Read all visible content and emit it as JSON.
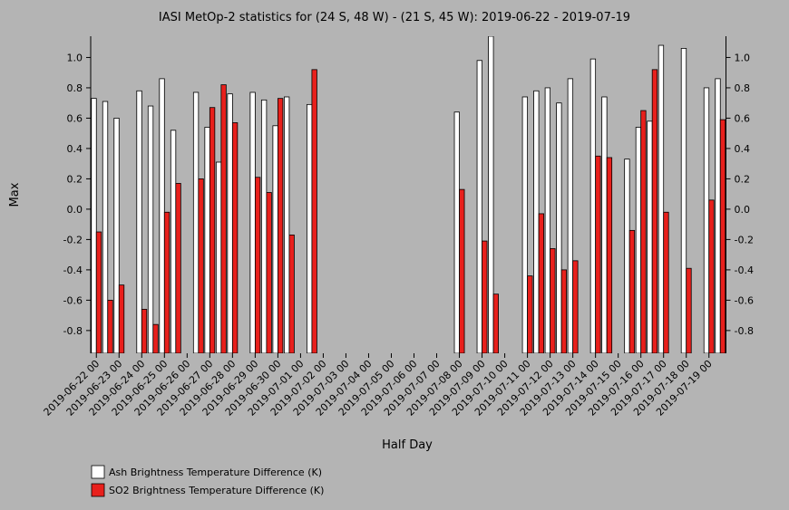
{
  "chart_data": {
    "type": "bar",
    "title": "IASI MetOp-2 statistics for (24 S, 48 W) - (21 S, 45 W): 2019-06-22 - 2019-07-19",
    "xlabel": "Half Day",
    "ylabel": "Max",
    "categories": [
      "2019-06-22 00",
      null,
      "2019-06-23 00",
      null,
      "2019-06-24 00",
      null,
      "2019-06-25 00",
      null,
      "2019-06-26 00",
      null,
      "2019-06-27 00",
      null,
      "2019-06-28 00",
      null,
      "2019-06-29 00",
      null,
      "2019-06-30 00",
      null,
      "2019-07-01 00",
      null,
      "2019-07-02 00",
      null,
      "2019-07-03 00",
      null,
      "2019-07-04 00",
      null,
      "2019-07-05 00",
      null,
      "2019-07-06 00",
      null,
      "2019-07-07 00",
      null,
      "2019-07-08 00",
      null,
      "2019-07-09 00",
      null,
      "2019-07-10 00",
      null,
      "2019-07-11 00",
      null,
      "2019-07-12 00",
      null,
      "2019-07-13 00",
      null,
      "2019-07-14 00",
      null,
      "2019-07-15 00",
      null,
      "2019-07-16 00",
      null,
      "2019-07-17 00",
      null,
      "2019-07-18 00",
      null,
      "2019-07-19 00",
      null
    ],
    "series": [
      {
        "name": "Ash Brightness Temperature Difference (K)",
        "color": "#ffffff",
        "values": [
          0.73,
          0.71,
          0.6,
          null,
          0.78,
          0.68,
          0.86,
          0.52,
          null,
          0.77,
          0.54,
          0.31,
          0.76,
          null,
          0.77,
          0.72,
          0.55,
          0.74,
          null,
          0.69,
          null,
          null,
          null,
          null,
          null,
          null,
          null,
          null,
          null,
          null,
          null,
          null,
          0.64,
          null,
          0.98,
          1.14,
          null,
          null,
          0.74,
          0.78,
          0.8,
          0.7,
          0.86,
          null,
          0.99,
          0.74,
          null,
          0.33,
          0.54,
          0.58,
          1.08,
          null,
          1.06,
          null,
          0.8,
          0.86
        ]
      },
      {
        "name": "SO2 Brightness Temperature Difference (K)",
        "color": "#e8201c",
        "values": [
          -0.15,
          -0.6,
          -0.5,
          null,
          -0.66,
          -0.76,
          -0.02,
          0.17,
          null,
          0.2,
          0.67,
          0.82,
          0.57,
          null,
          0.21,
          0.11,
          0.73,
          -0.17,
          null,
          0.92,
          null,
          null,
          null,
          null,
          null,
          null,
          null,
          null,
          null,
          null,
          null,
          null,
          0.13,
          null,
          -0.21,
          -0.56,
          null,
          null,
          -0.44,
          -0.03,
          -0.26,
          -0.4,
          -0.34,
          null,
          0.35,
          0.34,
          null,
          -0.14,
          0.65,
          0.92,
          -0.02,
          null,
          -0.39,
          null,
          0.06,
          0.59
        ]
      }
    ],
    "ylim": [
      -0.95,
      1.14
    ],
    "yticks": [
      -0.8,
      -0.6,
      -0.4,
      -0.2,
      {
        "value": 0,
        "label": "0.0"
      },
      0.2,
      0.4,
      0.6,
      0.8,
      {
        "value": 1,
        "label": "1.0"
      }
    ],
    "legend": "bottom-left"
  }
}
